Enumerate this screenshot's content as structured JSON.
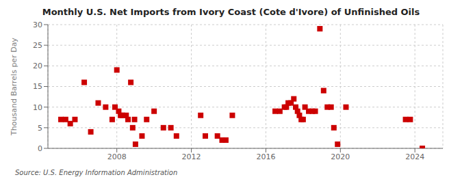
{
  "chart_data": {
    "type": "scatter",
    "title": "Monthly U.S. Net Imports from Ivory Coast (Cote d'Ivore) of Unfinished Oils",
    "y_label": "Thousand Barrels per Day",
    "annotation": "Source: U.S. Energy Information Administration",
    "color": "#cc0000",
    "marker": "square",
    "grid": true,
    "xlim": [
      2004.3,
      2025.5
    ],
    "ylim": [
      0,
      30
    ],
    "xticks": [
      2008,
      2012,
      2016,
      2020,
      2024
    ],
    "yticks": [
      0,
      5,
      10,
      15,
      20,
      25,
      30
    ],
    "x": [
      2005.0,
      2005.25,
      2005.5,
      2005.75,
      2006.25,
      2006.6,
      2007.0,
      2007.4,
      2007.75,
      2007.9,
      2008.0,
      2008.1,
      2008.2,
      2008.3,
      2008.5,
      2008.6,
      2008.75,
      2008.85,
      2008.95,
      2009.0,
      2009.35,
      2009.6,
      2010.0,
      2010.5,
      2010.9,
      2011.2,
      2012.5,
      2012.75,
      2013.4,
      2013.65,
      2013.85,
      2014.2,
      2016.5,
      2016.75,
      2017.0,
      2017.1,
      2017.2,
      2017.35,
      2017.5,
      2017.6,
      2017.7,
      2017.8,
      2017.9,
      2018.0,
      2018.1,
      2018.3,
      2018.5,
      2018.65,
      2018.9,
      2019.1,
      2019.3,
      2019.5,
      2019.65,
      2019.85,
      2020.3,
      2023.5,
      2023.75,
      2024.4
    ],
    "values": [
      7,
      7,
      6,
      7,
      16,
      4,
      11,
      10,
      7,
      10,
      19,
      9,
      8,
      8,
      8,
      7,
      16,
      5,
      7,
      1,
      3,
      7,
      9,
      5,
      5,
      3,
      8,
      3,
      3,
      2,
      2,
      8,
      9,
      9,
      10,
      10,
      11,
      11,
      12,
      10,
      9,
      8,
      7,
      7,
      10,
      9,
      9,
      9,
      29,
      14,
      10,
      10,
      5,
      1,
      10,
      7,
      7,
      0
    ]
  }
}
